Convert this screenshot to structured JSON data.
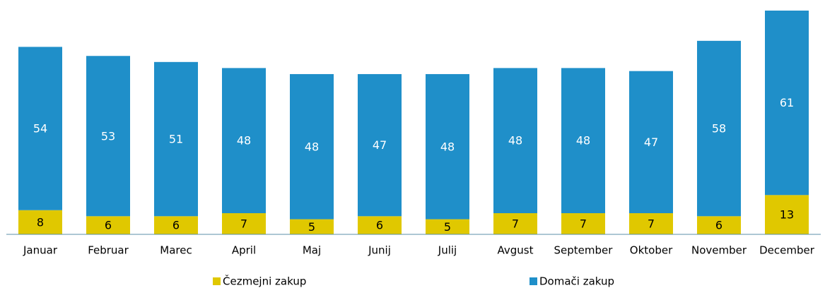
{
  "chart_data": {
    "type": "stacked_bar",
    "categories": [
      "Januar",
      "Februar",
      "Marec",
      "April",
      "Maj",
      "Junij",
      "Julij",
      "Avgust",
      "September",
      "Oktober",
      "November",
      "December"
    ],
    "series": [
      {
        "name": "Čezmejni zakup",
        "color": "#e0c800",
        "values": [
          8,
          6,
          6,
          7,
          5,
          6,
          5,
          7,
          7,
          7,
          6,
          13
        ]
      },
      {
        "name": "Domači zakup",
        "color": "#1f8fc9",
        "values": [
          54,
          53,
          51,
          48,
          48,
          47,
          48,
          48,
          48,
          47,
          58,
          61
        ]
      }
    ]
  }
}
